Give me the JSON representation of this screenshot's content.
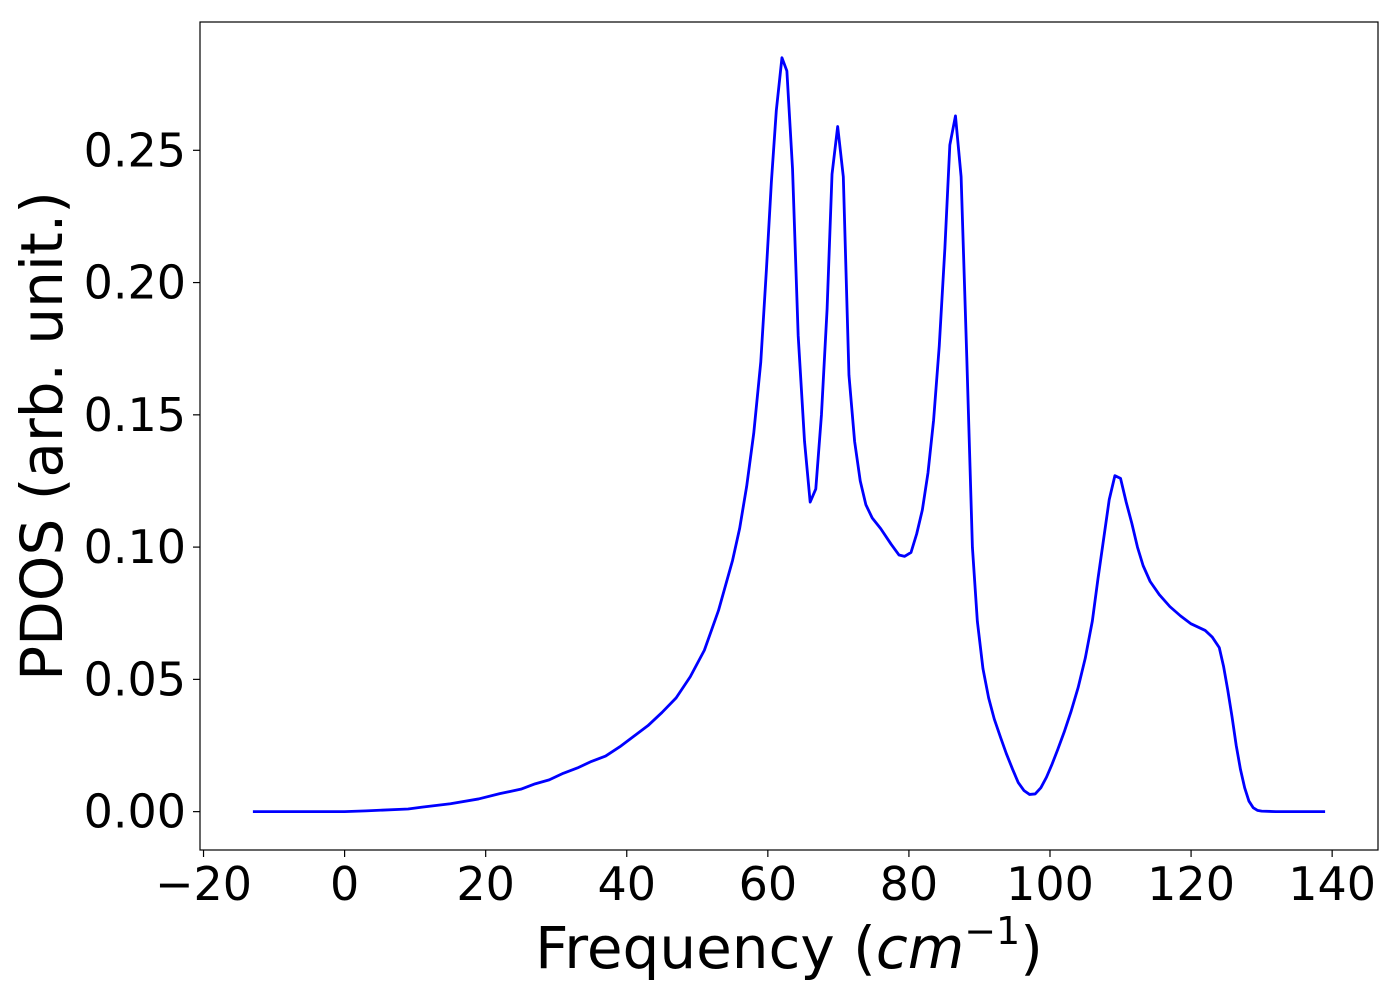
{
  "chart_data": {
    "type": "line",
    "title": "",
    "xlabel": "Frequency (",
    "xlabel_math": "cm",
    "xlabel_sup": "−1",
    "xlabel_close": ")",
    "ylabel": "PDOS (arb. unit.)",
    "xlim": [
      -20.5,
      146.5
    ],
    "ylim": [
      -0.0145,
      0.2985
    ],
    "x_ticks": [
      -20,
      0,
      20,
      40,
      60,
      80,
      100,
      120,
      140
    ],
    "x_tick_labels": [
      "−20",
      "0",
      "20",
      "40",
      "60",
      "80",
      "100",
      "120",
      "140"
    ],
    "y_ticks": [
      0.0,
      0.05,
      0.1,
      0.15,
      0.2,
      0.25
    ],
    "y_tick_labels": [
      "0.00",
      "0.05",
      "0.10",
      "0.15",
      "0.20",
      "0.25"
    ],
    "grid": false,
    "legend": "none",
    "series": [
      {
        "color": "#0000ff",
        "x": [
          -13,
          -5,
          0,
          3,
          9,
          11,
          15,
          19,
          22,
          25,
          27,
          29,
          31,
          33,
          35,
          37,
          39,
          41,
          43,
          45,
          47,
          49,
          51,
          53,
          55,
          56,
          57,
          58,
          59,
          59.8,
          60.5,
          61.2,
          62,
          62.7,
          63.5,
          64.3,
          65.2,
          66,
          66.8,
          67.6,
          68.4,
          69.1,
          69.9,
          70.7,
          71.5,
          72.3,
          73.1,
          73.9,
          74.8,
          76,
          77.5,
          78.6,
          79.4,
          80.3,
          81.1,
          81.9,
          82.7,
          83.5,
          84.3,
          85.1,
          85.8,
          86.6,
          87.4,
          88.2,
          89.0,
          89.7,
          90.5,
          91.3,
          92.1,
          93.0,
          93.8,
          94.7,
          95.5,
          96.3,
          97.1,
          97.9,
          98.7,
          99.5,
          100.3,
          101.1,
          102,
          103,
          104,
          105,
          106,
          106.8,
          107.6,
          108.4,
          109.2,
          110.0,
          110.8,
          111.6,
          112.4,
          113.2,
          114.2,
          115.5,
          117,
          118.5,
          120,
          122,
          123,
          124,
          124.6,
          125.2,
          125.8,
          126.4,
          127.0,
          127.6,
          128.2,
          128.8,
          129.4,
          130,
          132,
          135,
          139
        ],
        "values": [
          0.0,
          0.0,
          0.0,
          0.0003,
          0.001,
          0.0017,
          0.003,
          0.0048,
          0.0068,
          0.0085,
          0.0105,
          0.012,
          0.0145,
          0.0165,
          0.019,
          0.021,
          0.0245,
          0.0285,
          0.0325,
          0.0375,
          0.043,
          0.051,
          0.061,
          0.076,
          0.095,
          0.107,
          0.123,
          0.143,
          0.17,
          0.205,
          0.238,
          0.265,
          0.285,
          0.28,
          0.243,
          0.18,
          0.14,
          0.117,
          0.122,
          0.15,
          0.19,
          0.241,
          0.259,
          0.24,
          0.165,
          0.14,
          0.125,
          0.116,
          0.111,
          0.107,
          0.101,
          0.097,
          0.0965,
          0.098,
          0.105,
          0.114,
          0.128,
          0.148,
          0.176,
          0.213,
          0.252,
          0.263,
          0.24,
          0.172,
          0.1,
          0.072,
          0.054,
          0.043,
          0.035,
          0.028,
          0.022,
          0.016,
          0.011,
          0.008,
          0.0065,
          0.0067,
          0.009,
          0.013,
          0.018,
          0.0235,
          0.03,
          0.038,
          0.047,
          0.058,
          0.072,
          0.088,
          0.103,
          0.118,
          0.127,
          0.126,
          0.117,
          0.109,
          0.1,
          0.093,
          0.087,
          0.082,
          0.0775,
          0.074,
          0.071,
          0.0685,
          0.066,
          0.062,
          0.055,
          0.046,
          0.036,
          0.025,
          0.016,
          0.009,
          0.004,
          0.0015,
          0.0005,
          0.0002,
          0.0,
          0.0,
          0.0
        ]
      }
    ]
  }
}
